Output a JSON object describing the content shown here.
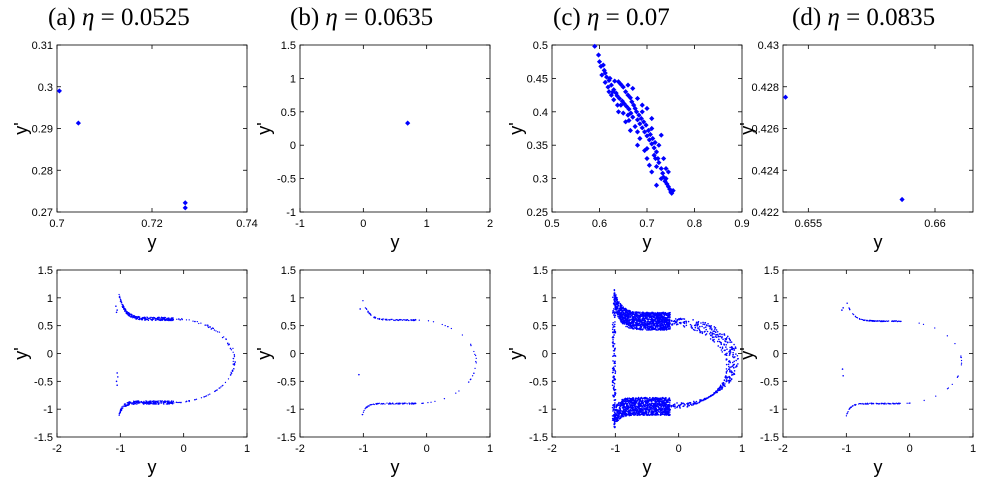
{
  "figure": {
    "panels": [
      {
        "label": "(a)",
        "eta_symbol": "η",
        "eq": "=",
        "eta_value": "0.0525"
      },
      {
        "label": "(b)",
        "eta_symbol": "η",
        "eq": "=",
        "eta_value": "0.0635"
      },
      {
        "label": "(c)",
        "eta_symbol": "η",
        "eq": "=",
        "eta_value": "0.07"
      },
      {
        "label": "(d)",
        "eta_symbol": "η",
        "eq": "=",
        "eta_value": "0.0835"
      }
    ]
  },
  "chart_data": [
    {
      "id": "a-top",
      "type": "scatter",
      "xlabel": "y",
      "ylabel": "y'",
      "xlim": [
        0.7,
        0.74
      ],
      "ylim": [
        0.27,
        0.31
      ],
      "xticks": [
        "0.7",
        "0.72",
        "0.74"
      ],
      "yticks": [
        "0.27",
        "0.28",
        "0.29",
        "0.3",
        "0.31"
      ],
      "marker": "diamond",
      "color": "#0000ff",
      "points": [
        [
          0.7005,
          0.299
        ],
        [
          0.7045,
          0.2913
        ],
        [
          0.727,
          0.2722
        ],
        [
          0.727,
          0.271
        ]
      ]
    },
    {
      "id": "b-top",
      "type": "scatter",
      "xlabel": "y",
      "ylabel": "y'",
      "xlim": [
        -1,
        2
      ],
      "ylim": [
        -1,
        1.5
      ],
      "xticks": [
        "-1",
        "0",
        "1",
        "2"
      ],
      "yticks": [
        "-1",
        "-0.5",
        "0",
        "0.5",
        "1",
        "1.5"
      ],
      "marker": "diamond",
      "color": "#0000ff",
      "points": [
        [
          0.7,
          0.33
        ]
      ]
    },
    {
      "id": "c-top",
      "type": "scatter",
      "xlabel": "y",
      "ylabel": "y'",
      "xlim": [
        0.5,
        0.9
      ],
      "ylim": [
        0.25,
        0.5
      ],
      "xticks": [
        "0.5",
        "0.6",
        "0.7",
        "0.8",
        "0.9"
      ],
      "yticks": [
        "0.25",
        "0.3",
        "0.35",
        "0.4",
        "0.45",
        "0.5"
      ],
      "marker": "diamond",
      "color": "#0000ff",
      "points": [
        [
          0.59,
          0.498
        ],
        [
          0.6,
          0.475
        ],
        [
          0.603,
          0.468
        ],
        [
          0.61,
          0.462
        ],
        [
          0.605,
          0.455
        ],
        [
          0.615,
          0.452
        ],
        [
          0.62,
          0.447
        ],
        [
          0.612,
          0.444
        ],
        [
          0.625,
          0.44
        ],
        [
          0.618,
          0.437
        ],
        [
          0.63,
          0.433
        ],
        [
          0.628,
          0.43
        ],
        [
          0.635,
          0.428
        ],
        [
          0.64,
          0.445
        ],
        [
          0.645,
          0.441
        ],
        [
          0.637,
          0.424
        ],
        [
          0.642,
          0.42
        ],
        [
          0.65,
          0.437
        ],
        [
          0.648,
          0.416
        ],
        [
          0.655,
          0.43
        ],
        [
          0.652,
          0.412
        ],
        [
          0.66,
          0.425
        ],
        [
          0.657,
          0.408
        ],
        [
          0.665,
          0.421
        ],
        [
          0.662,
          0.404
        ],
        [
          0.668,
          0.415
        ],
        [
          0.672,
          0.41
        ],
        [
          0.666,
          0.398
        ],
        [
          0.675,
          0.405
        ],
        [
          0.67,
          0.392
        ],
        [
          0.678,
          0.4
        ],
        [
          0.68,
          0.388
        ],
        [
          0.683,
          0.395
        ],
        [
          0.685,
          0.382
        ],
        [
          0.688,
          0.39
        ],
        [
          0.69,
          0.376
        ],
        [
          0.693,
          0.385
        ],
        [
          0.695,
          0.37
        ],
        [
          0.698,
          0.38
        ],
        [
          0.7,
          0.364
        ],
        [
          0.703,
          0.372
        ],
        [
          0.705,
          0.358
        ],
        [
          0.707,
          0.366
        ],
        [
          0.71,
          0.352
        ],
        [
          0.712,
          0.36
        ],
        [
          0.715,
          0.346
        ],
        [
          0.717,
          0.354
        ],
        [
          0.72,
          0.34
        ],
        [
          0.723,
          0.33
        ],
        [
          0.725,
          0.324
        ],
        [
          0.72,
          0.318
        ],
        [
          0.73,
          0.315
        ],
        [
          0.733,
          0.308
        ],
        [
          0.735,
          0.302
        ],
        [
          0.738,
          0.296
        ],
        [
          0.742,
          0.292
        ],
        [
          0.745,
          0.288
        ],
        [
          0.748,
          0.284
        ],
        [
          0.75,
          0.28
        ],
        [
          0.752,
          0.278
        ],
        [
          0.7,
          0.345
        ],
        [
          0.68,
          0.37
        ],
        [
          0.66,
          0.395
        ],
        [
          0.645,
          0.41
        ],
        [
          0.63,
          0.418
        ],
        [
          0.69,
          0.4
        ],
        [
          0.71,
          0.375
        ],
        [
          0.725,
          0.35
        ],
        [
          0.735,
          0.33
        ],
        [
          0.74,
          0.315
        ],
        [
          0.72,
          0.29
        ],
        [
          0.71,
          0.31
        ],
        [
          0.7,
          0.33
        ],
        [
          0.68,
          0.35
        ],
        [
          0.665,
          0.372
        ],
        [
          0.655,
          0.385
        ],
        [
          0.64,
          0.4
        ],
        [
          0.625,
          0.425
        ],
        [
          0.62,
          0.43
        ],
        [
          0.66,
          0.44
        ],
        [
          0.67,
          0.435
        ],
        [
          0.68,
          0.42
        ],
        [
          0.69,
          0.41
        ],
        [
          0.7,
          0.405
        ],
        [
          0.71,
          0.39
        ],
        [
          0.73,
          0.365
        ],
        [
          0.715,
          0.335
        ],
        [
          0.705,
          0.32
        ],
        [
          0.695,
          0.342
        ],
        [
          0.685,
          0.36
        ],
        [
          0.675,
          0.378
        ],
        [
          0.662,
          0.387
        ],
        [
          0.65,
          0.398
        ],
        [
          0.638,
          0.41
        ],
        [
          0.632,
          0.446
        ],
        [
          0.622,
          0.45
        ],
        [
          0.612,
          0.458
        ],
        [
          0.608,
          0.47
        ],
        [
          0.598,
          0.485
        ],
        [
          0.74,
          0.3
        ],
        [
          0.745,
          0.31
        ],
        [
          0.755,
          0.282
        ],
        [
          0.73,
          0.3
        ],
        [
          0.718,
          0.33
        ]
      ]
    },
    {
      "id": "d-top",
      "type": "scatter",
      "xlabel": "y",
      "ylabel": "y'",
      "xlim": [
        0.654,
        0.6615
      ],
      "ylim": [
        0.422,
        0.43
      ],
      "xticks": [
        "0.655",
        "0.66"
      ],
      "xtickvals": [
        0.655,
        0.66
      ],
      "yticks": [
        "0.422",
        "0.424",
        "0.426",
        "0.428",
        "0.43"
      ],
      "marker": "diamond",
      "color": "#0000ff",
      "points": [
        [
          0.6541,
          0.4275
        ],
        [
          0.6587,
          0.4226
        ]
      ]
    },
    {
      "id": "a-bottom",
      "type": "scatter",
      "xlabel": "y",
      "ylabel": "y'",
      "xlim": [
        -2,
        1
      ],
      "ylim": [
        -1.5,
        1.5
      ],
      "xticks": [
        "-2",
        "-1",
        "0",
        "1"
      ],
      "yticks": [
        "-1.5",
        "-1",
        "-0.5",
        "0",
        "0.5",
        "1",
        "1.5"
      ],
      "marker": "dot",
      "color": "#0000ff",
      "curve": {
        "x_left": -1.02,
        "x_right": 0.8,
        "y_top": 0.62,
        "y_bottom": -0.88,
        "spike_top": 1.05,
        "spike_bottom": -1.1,
        "band": 0.06,
        "count": 700
      },
      "extra_points": [
        [
          -1.07,
          0.85
        ],
        [
          -1.05,
          0.78
        ],
        [
          -1.06,
          0.74
        ],
        [
          -1.05,
          -0.35
        ],
        [
          -1.04,
          -0.42
        ],
        [
          -1.06,
          -0.5
        ],
        [
          -1.05,
          -0.57
        ]
      ]
    },
    {
      "id": "b-bottom",
      "type": "scatter",
      "xlabel": "y",
      "ylabel": "y'",
      "xlim": [
        -2,
        1
      ],
      "ylim": [
        -1.5,
        1.5
      ],
      "xticks": [
        "-2",
        "-1",
        "0",
        "1"
      ],
      "yticks": [
        "-1.5",
        "-1",
        "-0.5",
        "0",
        "0.5",
        "1",
        "1.5"
      ],
      "marker": "dot",
      "color": "#0000ff",
      "curve": {
        "x_left": -1.02,
        "x_right": 0.78,
        "y_top": 0.6,
        "y_bottom": -0.9,
        "spike_top": 1.0,
        "spike_bottom": -1.12,
        "band": 0.02,
        "count": 200
      },
      "extra_points": [
        [
          -1.05,
          0.8
        ],
        [
          -1.07,
          -0.38
        ]
      ]
    },
    {
      "id": "c-bottom",
      "type": "scatter",
      "xlabel": "y",
      "ylabel": "y'",
      "xlim": [
        -2,
        1
      ],
      "ylim": [
        -1.5,
        1.5
      ],
      "xticks": [
        "-2",
        "-1",
        "0",
        "1"
      ],
      "yticks": [
        "-1.5",
        "-1",
        "-0.5",
        "0",
        "0.5",
        "1",
        "1.5"
      ],
      "marker": "dot",
      "color": "#0000ff",
      "curve": {
        "x_left": -1.02,
        "x_right": 0.85,
        "y_top": 0.58,
        "y_bottom": -0.95,
        "spike_top": 1.02,
        "spike_bottom": -1.22,
        "band": 0.32,
        "count": 2800
      },
      "left_edge": true
    },
    {
      "id": "d-bottom",
      "type": "scatter",
      "xlabel": "y",
      "ylabel": "y'",
      "xlim": [
        -2,
        1
      ],
      "ylim": [
        -1.5,
        1.5
      ],
      "xticks": [
        "-2",
        "-1",
        "0",
        "1"
      ],
      "yticks": [
        "-1.5",
        "-1",
        "-0.5",
        "0",
        "0.5",
        "1",
        "1.5"
      ],
      "marker": "dot",
      "color": "#0000ff",
      "curve": {
        "x_left": -1.0,
        "x_right": 0.82,
        "y_top": 0.58,
        "y_bottom": -0.9,
        "spike_top": 0.95,
        "spike_bottom": -1.12,
        "band": 0.015,
        "count": 220
      },
      "extra_points": [
        [
          -1.05,
          0.82
        ],
        [
          -1.06,
          -0.28
        ],
        [
          -1.05,
          -0.4
        ],
        [
          -1.07,
          0.78
        ]
      ]
    }
  ]
}
